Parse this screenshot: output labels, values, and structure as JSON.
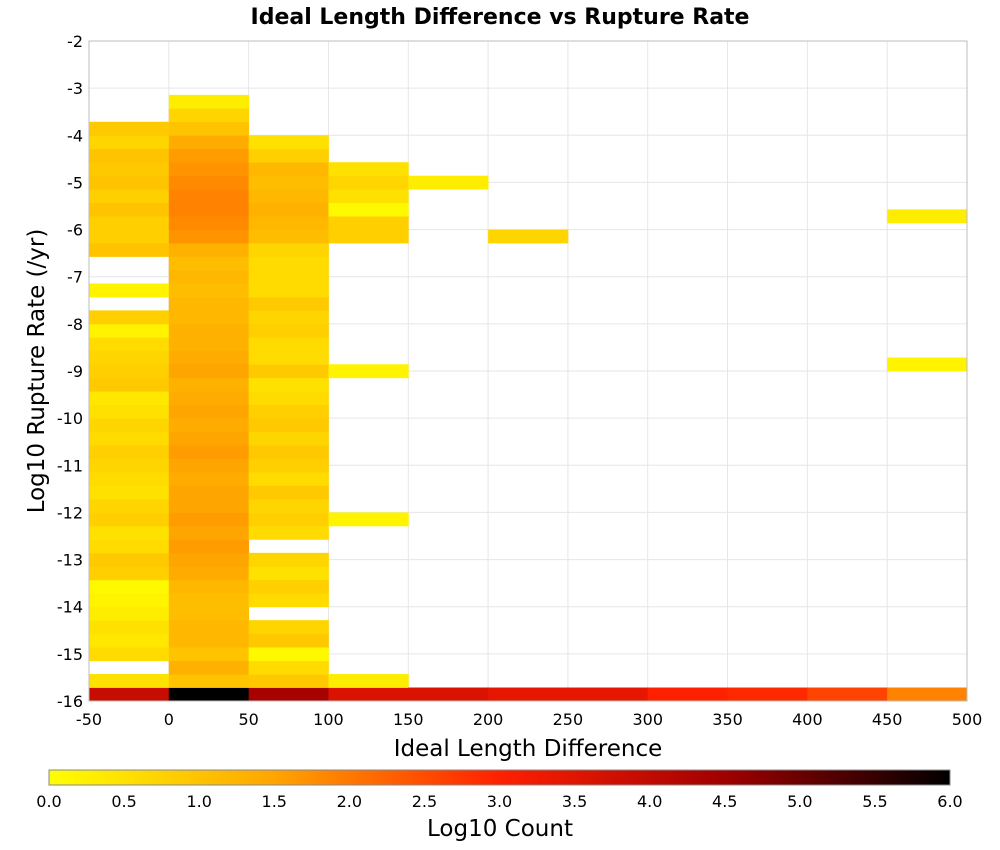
{
  "chart_data": {
    "type": "heatmap",
    "title": "Ideal Length Difference vs Rupture Rate",
    "xlabel": "Ideal Length Difference",
    "ylabel": "Log10 Rupture Rate (/yr)",
    "xlim": [
      -50,
      500
    ],
    "ylim": [
      -16,
      -2
    ],
    "x_ticks": [
      -50,
      0,
      50,
      100,
      150,
      200,
      250,
      300,
      350,
      400,
      450,
      500
    ],
    "y_ticks": [
      -2,
      -3,
      -4,
      -5,
      -6,
      -7,
      -8,
      -9,
      -10,
      -11,
      -12,
      -13,
      -14,
      -15,
      -16
    ],
    "grid": true,
    "x_bin_width": 50,
    "y_bin_height": 0.286,
    "colorbar": {
      "label": "Log10 Count",
      "min": 0.0,
      "max": 6.0,
      "ticks": [
        "0.0",
        "0.5",
        "1.0",
        "1.5",
        "2.0",
        "2.5",
        "3.0",
        "3.5",
        "4.0",
        "4.5",
        "5.0",
        "5.5",
        "6.0"
      ],
      "colormap": [
        "#ffff00",
        "#ffa500",
        "#ff2000",
        "#a00000",
        "#000000"
      ]
    },
    "columns": [
      {
        "x_start": -50,
        "cells": [
          [
            -16.0,
            3.9
          ],
          [
            -15.714,
            0.5
          ],
          [
            -15.143,
            0.6
          ],
          [
            -14.857,
            0.4
          ],
          [
            -14.571,
            0.5
          ],
          [
            -14.286,
            0.3
          ],
          [
            -14.0,
            0.2
          ],
          [
            -13.714,
            0.1
          ],
          [
            -13.429,
            0.8
          ],
          [
            -13.143,
            0.9
          ],
          [
            -12.857,
            0.6
          ],
          [
            -12.571,
            0.5
          ],
          [
            -12.286,
            0.8
          ],
          [
            -12.0,
            0.7
          ],
          [
            -11.714,
            0.5
          ],
          [
            -11.429,
            0.6
          ],
          [
            -11.143,
            0.7
          ],
          [
            -10.857,
            0.8
          ],
          [
            -10.571,
            0.6
          ],
          [
            -10.286,
            0.7
          ],
          [
            -10.0,
            0.5
          ],
          [
            -9.714,
            0.4
          ],
          [
            -9.429,
            0.9
          ],
          [
            -9.143,
            0.8
          ],
          [
            -8.857,
            0.7
          ],
          [
            -8.571,
            0.6
          ],
          [
            -8.286,
            0.2
          ],
          [
            -8.0,
            0.8
          ],
          [
            -7.429,
            0.2
          ],
          [
            -6.571,
            1.0
          ],
          [
            -6.286,
            0.8
          ],
          [
            -6.0,
            0.8
          ],
          [
            -5.714,
            1.0
          ],
          [
            -5.429,
            0.8
          ],
          [
            -5.143,
            1.0
          ],
          [
            -4.857,
            0.9
          ],
          [
            -4.571,
            1.0
          ],
          [
            -4.286,
            0.7
          ],
          [
            -4.0,
            0.9
          ]
        ]
      },
      {
        "x_start": 0,
        "cells": [
          [
            -16.0,
            6.0
          ],
          [
            -15.714,
            1.0
          ],
          [
            -15.429,
            1.3
          ],
          [
            -15.143,
            1.0
          ],
          [
            -14.857,
            1.2
          ],
          [
            -14.571,
            1.2
          ],
          [
            -14.286,
            1.1
          ],
          [
            -14.0,
            1.1
          ],
          [
            -13.714,
            1.2
          ],
          [
            -13.429,
            1.4
          ],
          [
            -13.143,
            1.5
          ],
          [
            -12.857,
            1.6
          ],
          [
            -12.571,
            1.5
          ],
          [
            -12.286,
            1.6
          ],
          [
            -12.0,
            1.5
          ],
          [
            -11.714,
            1.5
          ],
          [
            -11.429,
            1.4
          ],
          [
            -11.143,
            1.5
          ],
          [
            -10.857,
            1.6
          ],
          [
            -10.571,
            1.5
          ],
          [
            -10.286,
            1.4
          ],
          [
            -10.0,
            1.5
          ],
          [
            -9.714,
            1.4
          ],
          [
            -9.429,
            1.3
          ],
          [
            -9.143,
            1.5
          ],
          [
            -8.857,
            1.4
          ],
          [
            -8.571,
            1.3
          ],
          [
            -8.286,
            1.3
          ],
          [
            -8.0,
            1.2
          ],
          [
            -7.714,
            1.2
          ],
          [
            -7.429,
            1.1
          ],
          [
            -7.143,
            1.2
          ],
          [
            -6.857,
            1.1
          ],
          [
            -6.571,
            1.3
          ],
          [
            -6.286,
            1.7
          ],
          [
            -6.0,
            1.8
          ],
          [
            -5.714,
            1.9
          ],
          [
            -5.429,
            1.9
          ],
          [
            -5.143,
            1.8
          ],
          [
            -4.857,
            1.7
          ],
          [
            -4.571,
            1.6
          ],
          [
            -4.286,
            1.4
          ],
          [
            -4.0,
            1.0
          ],
          [
            -3.714,
            0.7
          ],
          [
            -3.429,
            0.3
          ]
        ]
      },
      {
        "x_start": 50,
        "cells": [
          [
            -16.0,
            4.4
          ],
          [
            -15.714,
            0.9
          ],
          [
            -15.429,
            0.6
          ],
          [
            -15.143,
            0.1
          ],
          [
            -14.857,
            0.9
          ],
          [
            -14.571,
            0.7
          ],
          [
            -14.0,
            0.6
          ],
          [
            -13.714,
            0.8
          ],
          [
            -13.429,
            0.5
          ],
          [
            -13.143,
            0.7
          ],
          [
            -12.571,
            0.6
          ],
          [
            -12.286,
            0.8
          ],
          [
            -12.0,
            0.7
          ],
          [
            -11.714,
            0.9
          ],
          [
            -11.429,
            0.6
          ],
          [
            -11.143,
            0.8
          ],
          [
            -10.857,
            0.9
          ],
          [
            -10.571,
            0.7
          ],
          [
            -10.286,
            0.9
          ],
          [
            -10.0,
            0.8
          ],
          [
            -9.714,
            0.6
          ],
          [
            -9.429,
            0.5
          ],
          [
            -9.143,
            0.9
          ],
          [
            -8.857,
            0.6
          ],
          [
            -8.571,
            0.6
          ],
          [
            -8.286,
            0.8
          ],
          [
            -8.0,
            0.7
          ],
          [
            -7.714,
            0.9
          ],
          [
            -7.429,
            0.6
          ],
          [
            -7.143,
            0.6
          ],
          [
            -6.857,
            0.6
          ],
          [
            -6.571,
            0.7
          ],
          [
            -6.286,
            1.1
          ],
          [
            -6.0,
            1.2
          ],
          [
            -5.714,
            1.3
          ],
          [
            -5.429,
            1.2
          ],
          [
            -5.143,
            1.1
          ],
          [
            -4.857,
            1.2
          ],
          [
            -4.571,
            0.8
          ],
          [
            -4.286,
            0.5
          ]
        ]
      },
      {
        "x_start": 100,
        "cells": [
          [
            -16.0,
            3.6
          ],
          [
            -15.714,
            0.3
          ],
          [
            -12.286,
            0.2
          ],
          [
            -9.143,
            0.2
          ],
          [
            -6.286,
            0.8
          ],
          [
            -6.0,
            0.8
          ],
          [
            -5.714,
            0.1
          ],
          [
            -5.429,
            0.5
          ],
          [
            -5.143,
            0.7
          ],
          [
            -4.857,
            0.5
          ]
        ]
      },
      {
        "x_start": 150,
        "cells": [
          [
            -16.0,
            3.6
          ],
          [
            -5.143,
            0.3
          ]
        ]
      },
      {
        "x_start": 200,
        "cells": [
          [
            -16.0,
            3.4
          ],
          [
            -6.286,
            0.7
          ]
        ]
      },
      {
        "x_start": 250,
        "cells": [
          [
            -16.0,
            3.4
          ]
        ]
      },
      {
        "x_start": 300,
        "cells": [
          [
            -16.0,
            3.0
          ]
        ]
      },
      {
        "x_start": 350,
        "cells": [
          [
            -16.0,
            2.9
          ]
        ]
      },
      {
        "x_start": 400,
        "cells": [
          [
            -16.0,
            2.6
          ]
        ]
      },
      {
        "x_start": 450,
        "cells": [
          [
            -16.0,
            1.9
          ],
          [
            -9.0,
            0.2
          ],
          [
            -5.857,
            0.3
          ]
        ]
      }
    ]
  }
}
